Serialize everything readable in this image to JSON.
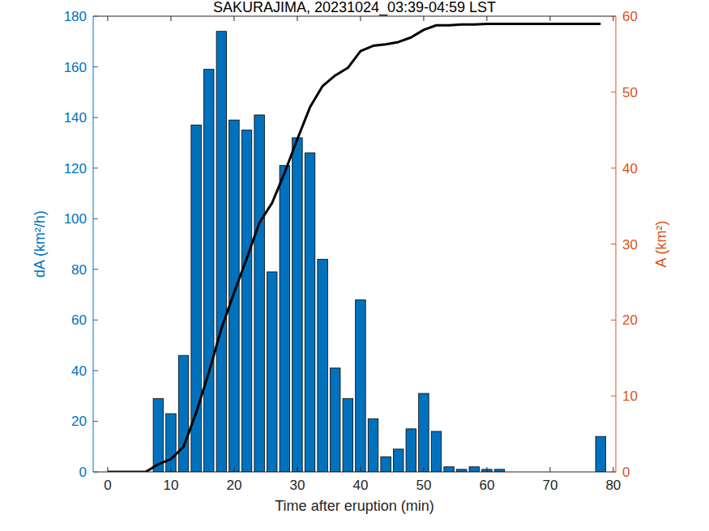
{
  "chart_data": {
    "type": "bar",
    "title": "SAKURAJIMA, 20231024_03:39-04:59 LST",
    "x_label": "Time after eruption (min)",
    "y_label": "dA (km²/h)",
    "y2_label": "A (km²)",
    "x": [
      0,
      2,
      4,
      6,
      8,
      10,
      12,
      14,
      16,
      18,
      20,
      22,
      24,
      26,
      28,
      30,
      32,
      34,
      36,
      38,
      40,
      42,
      44,
      46,
      48,
      50,
      52,
      54,
      56,
      58,
      60,
      62,
      64,
      66,
      68,
      70,
      72,
      74,
      76,
      78
    ],
    "series": [
      {
        "type": "bar",
        "color": "#0072bd",
        "values": [
          0,
          0,
          0,
          0,
          29,
          23,
          46,
          137,
          159,
          174,
          139,
          135,
          141,
          79,
          121,
          132,
          126,
          84,
          41,
          29,
          68,
          21,
          6,
          9,
          17,
          31,
          16,
          2,
          1,
          2,
          1,
          1,
          0,
          0,
          0,
          0,
          0,
          0,
          0,
          14
        ]
      },
      {
        "type": "line",
        "color": "#000000",
        "axis": "y2",
        "line_style": "solid",
        "values": [
          0,
          0,
          0,
          0,
          1.0,
          1.7,
          3.3,
          7.8,
          13.1,
          18.9,
          23.6,
          28.1,
          32.8,
          35.4,
          39.4,
          43.8,
          48.0,
          50.8,
          52.2,
          53.2,
          55.4,
          56.1,
          56.3,
          56.6,
          57.2,
          58.2,
          58.8,
          58.8,
          58.9,
          58.9,
          59.0,
          59.0,
          59.0,
          59.0,
          59.0,
          59.0,
          59.0,
          59.0,
          59.0,
          59.0
        ]
      }
    ],
    "xlim": [
      -2.3,
      80.4
    ],
    "xticks": [
      0,
      10,
      20,
      30,
      40,
      50,
      60,
      70,
      80
    ],
    "ylim": [
      0,
      180
    ],
    "yticks": [
      0,
      20,
      40,
      60,
      80,
      100,
      120,
      140,
      160,
      180
    ],
    "y2lim": [
      0,
      60
    ],
    "y2ticks": [
      0,
      10,
      20,
      30,
      40,
      50,
      60
    ],
    "y_color": "#0072bd",
    "y2_color": "#d95319",
    "grid": false
  }
}
